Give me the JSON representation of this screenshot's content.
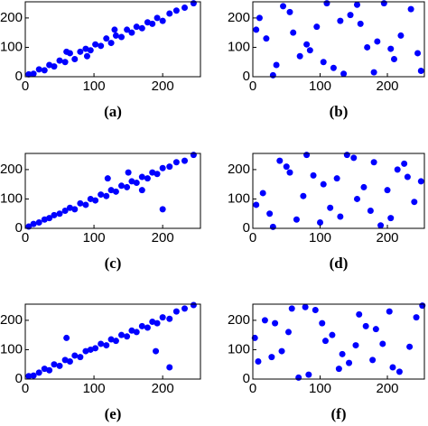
{
  "chart_data": [
    {
      "type": "scatter",
      "caption": "(a)",
      "color": "#0000ff",
      "x": [
        5,
        12,
        20,
        28,
        35,
        42,
        50,
        58,
        65,
        72,
        80,
        88,
        95,
        102,
        110,
        118,
        125,
        132,
        140,
        148,
        155,
        162,
        170,
        178,
        185,
        192,
        200,
        210,
        220,
        232,
        245,
        60,
        90,
        130
      ],
      "y": [
        8,
        10,
        25,
        22,
        40,
        35,
        55,
        50,
        80,
        60,
        85,
        95,
        90,
        110,
        105,
        130,
        115,
        140,
        135,
        160,
        150,
        170,
        165,
        185,
        180,
        200,
        190,
        215,
        225,
        235,
        250,
        85,
        70,
        160
      ],
      "xlim": [
        0,
        255
      ],
      "ylim": [
        0,
        255
      ],
      "xticks": [
        0,
        100,
        200
      ],
      "yticks": [
        0,
        100,
        200
      ]
    },
    {
      "type": "scatter",
      "caption": "(b)",
      "color": "#0000ff",
      "x": [
        10,
        35,
        60,
        85,
        110,
        135,
        160,
        185,
        210,
        235,
        250,
        20,
        45,
        70,
        95,
        120,
        145,
        170,
        195,
        220,
        245,
        5,
        30,
        55,
        80,
        105,
        130,
        155,
        180,
        205
      ],
      "y": [
        200,
        40,
        150,
        90,
        250,
        10,
        180,
        120,
        60,
        230,
        20,
        130,
        240,
        70,
        170,
        30,
        210,
        100,
        250,
        140,
        80,
        160,
        5,
        220,
        110,
        50,
        190,
        245,
        15,
        95
      ],
      "xlim": [
        0,
        255
      ],
      "ylim": [
        0,
        255
      ],
      "xticks": [
        0,
        100,
        200
      ],
      "yticks": [
        0,
        100,
        200
      ]
    },
    {
      "type": "scatter",
      "caption": "(c)",
      "color": "#0000ff",
      "x": [
        5,
        12,
        20,
        28,
        35,
        42,
        50,
        58,
        65,
        72,
        80,
        88,
        95,
        102,
        110,
        118,
        125,
        132,
        140,
        148,
        155,
        162,
        170,
        178,
        185,
        192,
        200,
        210,
        220,
        232,
        245,
        150,
        170,
        200,
        120
      ],
      "y": [
        6,
        15,
        20,
        30,
        35,
        45,
        50,
        60,
        70,
        65,
        85,
        80,
        100,
        95,
        115,
        110,
        130,
        125,
        145,
        140,
        160,
        155,
        175,
        170,
        190,
        185,
        205,
        210,
        225,
        230,
        250,
        190,
        130,
        65,
        170
      ],
      "xlim": [
        0,
        255
      ],
      "ylim": [
        0,
        255
      ],
      "xticks": [
        0,
        100,
        200
      ],
      "yticks": [
        0,
        100,
        200
      ]
    },
    {
      "type": "scatter",
      "caption": "(d)",
      "color": "#0000ff",
      "x": [
        15,
        40,
        65,
        90,
        115,
        140,
        165,
        190,
        215,
        240,
        250,
        25,
        50,
        75,
        100,
        125,
        150,
        175,
        200,
        225,
        5,
        30,
        55,
        80,
        105,
        130,
        155,
        180,
        205,
        230
      ],
      "y": [
        120,
        230,
        30,
        180,
        70,
        250,
        140,
        10,
        200,
        90,
        160,
        50,
        210,
        110,
        20,
        170,
        240,
        60,
        130,
        220,
        80,
        5,
        190,
        250,
        150,
        40,
        100,
        225,
        35,
        175
      ],
      "xlim": [
        0,
        255
      ],
      "ylim": [
        0,
        255
      ],
      "xticks": [
        0,
        100,
        200
      ],
      "yticks": [
        0,
        100,
        200
      ]
    },
    {
      "type": "scatter",
      "caption": "(e)",
      "color": "#0000ff",
      "x": [
        5,
        12,
        20,
        28,
        35,
        42,
        50,
        58,
        65,
        72,
        80,
        88,
        95,
        102,
        110,
        118,
        125,
        132,
        140,
        148,
        155,
        162,
        170,
        178,
        185,
        192,
        200,
        210,
        220,
        232,
        245,
        210,
        190,
        60
      ],
      "y": [
        10,
        12,
        22,
        35,
        30,
        50,
        45,
        65,
        60,
        80,
        75,
        95,
        100,
        105,
        120,
        115,
        135,
        130,
        150,
        145,
        165,
        160,
        180,
        175,
        195,
        190,
        210,
        205,
        230,
        240,
        252,
        40,
        95,
        140
      ],
      "xlim": [
        0,
        255
      ],
      "ylim": [
        0,
        255
      ],
      "xticks": [
        0,
        100,
        200
      ],
      "yticks": [
        0,
        100,
        200
      ]
    },
    {
      "type": "scatter",
      "caption": "(f)",
      "color": "#0000ff",
      "x": [
        8,
        33,
        58,
        83,
        108,
        133,
        158,
        183,
        208,
        233,
        252,
        18,
        43,
        68,
        93,
        118,
        143,
        168,
        193,
        218,
        243,
        3,
        28,
        53,
        78,
        103,
        128,
        153,
        178,
        203
      ],
      "y": [
        60,
        190,
        240,
        15,
        130,
        85,
        220,
        170,
        40,
        110,
        250,
        200,
        95,
        5,
        235,
        150,
        55,
        180,
        120,
        25,
        210,
        140,
        75,
        160,
        245,
        190,
        35,
        115,
        65,
        230
      ],
      "xlim": [
        0,
        255
      ],
      "ylim": [
        0,
        255
      ],
      "xticks": [
        0,
        100,
        200
      ],
      "yticks": [
        0,
        100,
        200
      ]
    }
  ]
}
